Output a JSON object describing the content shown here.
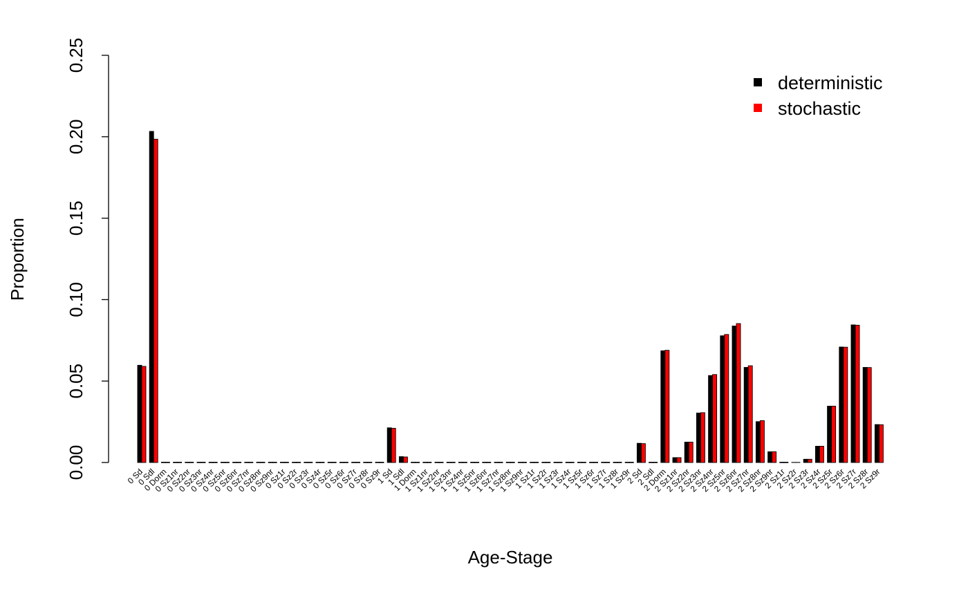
{
  "chart_data": {
    "type": "bar",
    "xlabel": "Age-Stage",
    "ylabel": "Proportion",
    "ylim": [
      0,
      0.25
    ],
    "yticks": [
      "0.00",
      "0.05",
      "0.10",
      "0.15",
      "0.20",
      "0.25"
    ],
    "grid": false,
    "legend_position": "top-right",
    "categories": [
      "0 Sd",
      "0 Sdl",
      "0 Dorm",
      "0 Sz1nr",
      "0 Sz2nr",
      "0 Sz3nr",
      "0 Sz4nr",
      "0 Sz5nr",
      "0 Sz6nr",
      "0 Sz7nr",
      "0 Sz8nr",
      "0 Sz9nr",
      "0 Sz1r",
      "0 Sz2r",
      "0 Sz3r",
      "0 Sz4r",
      "0 Sz5r",
      "0 Sz6r",
      "0 Sz7r",
      "0 Sz8r",
      "0 Sz9r",
      "1 Sd",
      "1 Sdl",
      "1 Dorm",
      "1 Sz1nr",
      "1 Sz2nr",
      "1 Sz3nr",
      "1 Sz4nr",
      "1 Sz5nr",
      "1 Sz6nr",
      "1 Sz7nr",
      "1 Sz8nr",
      "1 Sz9nr",
      "1 Sz1r",
      "1 Sz2r",
      "1 Sz3r",
      "1 Sz4r",
      "1 Sz5r",
      "1 Sz6r",
      "1 Sz7r",
      "1 Sz8r",
      "1 Sz9r",
      "2 Sd",
      "2 Sdl",
      "2 Dorm",
      "2 Sz1nr",
      "2 Sz2nr",
      "2 Sz3nr",
      "2 Sz4nr",
      "2 Sz5nr",
      "2 Sz6nr",
      "2 Sz7nr",
      "2 Sz8nr",
      "2 Sz9nr",
      "2 Sz1r",
      "2 Sz2r",
      "2 Sz3r",
      "2 Sz4r",
      "2 Sz5r",
      "2 Sz6r",
      "2 Sz7r",
      "2 Sz8r",
      "2 Sz9r"
    ],
    "series": [
      {
        "name": "deterministic",
        "color": "#000000",
        "values": [
          0.0597,
          0.2033,
          0,
          0,
          0,
          0,
          0,
          0,
          0,
          0,
          0,
          0,
          0,
          0,
          0,
          0,
          0,
          0,
          0,
          0,
          0,
          0.0213,
          0.0036,
          0,
          0,
          0,
          0,
          0,
          0,
          0,
          0,
          0,
          0,
          0,
          0,
          0,
          0,
          0,
          0,
          0,
          0,
          0,
          0.0118,
          0,
          0.0686,
          0.003,
          0.0125,
          0.0304,
          0.0534,
          0.0778,
          0.0838,
          0.0584,
          0.0251,
          0.0066,
          0,
          0.0001,
          0.002,
          0.01,
          0.0346,
          0.0709,
          0.0845,
          0.0584,
          0.0233
        ]
      },
      {
        "name": "stochastic",
        "color": "#ff0000",
        "values": [
          0.059,
          0.1985,
          0,
          0,
          0,
          0,
          0,
          0,
          0,
          0,
          0,
          0,
          0,
          0,
          0,
          0,
          0,
          0,
          0,
          0,
          0,
          0.021,
          0.0034,
          0,
          0,
          0,
          0,
          0,
          0,
          0,
          0,
          0,
          0,
          0,
          0,
          0,
          0,
          0,
          0,
          0,
          0,
          0,
          0.0116,
          0,
          0.0689,
          0.003,
          0.0125,
          0.0306,
          0.054,
          0.0786,
          0.0853,
          0.0594,
          0.0257,
          0.0066,
          0,
          0.0001,
          0.002,
          0.01,
          0.0346,
          0.0708,
          0.0843,
          0.0583,
          0.0232
        ]
      }
    ]
  }
}
